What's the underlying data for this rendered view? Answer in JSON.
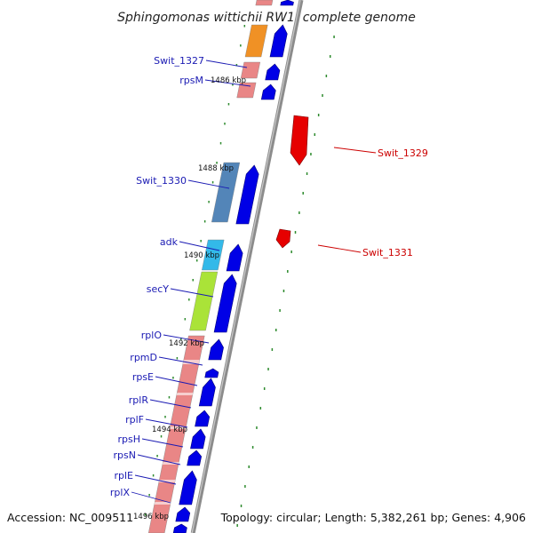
{
  "title": "Sphingomonas wittichii RW1, complete genome",
  "accession": "Accession: NC_009511",
  "topology": "Topology: circular; Length: 5,382,261 bp; Genes: 4,906",
  "colors": {
    "forward_gene": "#0000e6",
    "reverse_gene": "#e60000",
    "forward_label": "#1a1ab3",
    "reverse_label": "#cc0000",
    "backbone": "#8c8c8c",
    "tick": "#2e8b2e",
    "cog_ribosomal": "#e88080",
    "cog_orange": "#f08c1a",
    "cog_steelblue": "#4a7fb5",
    "cog_cyan": "#29b6e8",
    "cog_lime": "#a6e22e"
  },
  "forward_labels": [
    {
      "name": "Swit_1327"
    },
    {
      "name": "rpsM"
    },
    {
      "name": "Swit_1330"
    },
    {
      "name": "adk"
    },
    {
      "name": "secY"
    },
    {
      "name": "rplO"
    },
    {
      "name": "rpmD"
    },
    {
      "name": "rpsE"
    },
    {
      "name": "rplR"
    },
    {
      "name": "rplF"
    },
    {
      "name": "rpsH"
    },
    {
      "name": "rpsN"
    },
    {
      "name": "rplE"
    },
    {
      "name": "rplX"
    }
  ],
  "reverse_labels": [
    {
      "name": "Swit_1329"
    },
    {
      "name": "Swit_1331"
    }
  ],
  "kbp_labels": [
    "1486 kbp",
    "1488 kbp",
    "1490 kbp",
    "1492 kbp",
    "1494 kbp",
    "1496 kbp"
  ]
}
